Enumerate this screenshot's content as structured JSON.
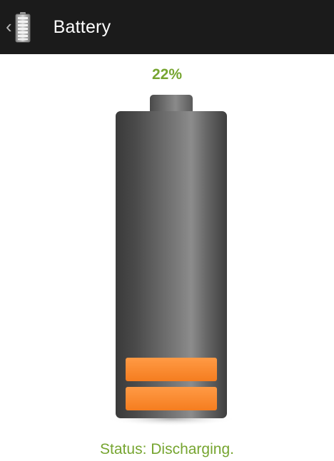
{
  "action_bar": {
    "title": "Battery",
    "icon": "battery-icon",
    "nav_icon": "chevron-left-icon"
  },
  "battery": {
    "percent_label": "22%",
    "level_percent": 22,
    "lit_bars": 2,
    "bar_color": "#ff8a2c",
    "body_color": "#555555"
  },
  "status": {
    "text": "Status: Discharging."
  },
  "colors": {
    "accent_green": "#76a530",
    "action_bar_bg": "#1b1b1b"
  }
}
